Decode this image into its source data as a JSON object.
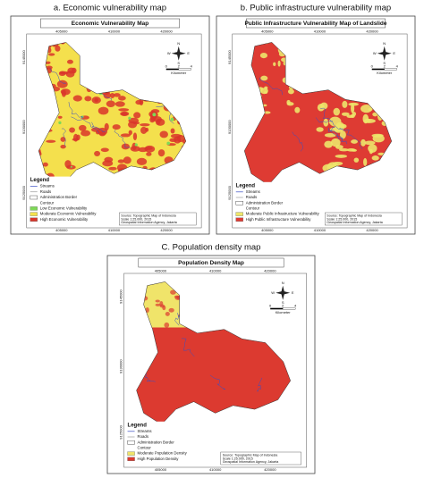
{
  "panels": [
    {
      "caption": "a. Economic vulnerability map",
      "title": "Economic Vulnerability Map",
      "x_ticks": [
        "405000",
        "410000",
        "420000"
      ],
      "y_ticks": [
        "9145000",
        "9130000",
        "9125000"
      ],
      "compass": [
        "N",
        "E",
        "S",
        "W"
      ],
      "scale": [
        "0",
        "2",
        "4"
      ],
      "scale_unit": "Kilometer",
      "legend": {
        "heading": "Legend",
        "items": [
          {
            "label": "Streams"
          },
          {
            "label": "Roads"
          },
          {
            "label": "Administration Border"
          },
          {
            "label": "Contour"
          },
          {
            "label": "Low Economic Vulnerability",
            "color": "#7ed957"
          },
          {
            "label": "Moderate Economic Vulnerability",
            "color": "#f4e04d"
          },
          {
            "label": "High Economic Vulnerability",
            "color": "#d9352a"
          }
        ]
      },
      "source": [
        "Source: Topographic Map of Indonesia",
        "Scale 1:25.000, 2015",
        "Geospatial Information Agency, Jakarta"
      ]
    },
    {
      "caption": "b. Public infrastructure vulnerability map",
      "title": "Public Infrastructure Vulnerability Map of Landslide",
      "x_ticks": [
        "405000",
        "410000",
        "420000"
      ],
      "y_ticks": [
        "9145000",
        "9130000",
        "9125000"
      ],
      "compass": [
        "N",
        "E",
        "S",
        "W"
      ],
      "scale": [
        "0",
        "2",
        "4"
      ],
      "scale_unit": "Kilometer",
      "legend": {
        "heading": "Legend",
        "items": [
          {
            "label": "Streams"
          },
          {
            "label": "Roads"
          },
          {
            "label": "Administration Border"
          },
          {
            "label": "Contour"
          },
          {
            "label": "Moderate Public Infrastructure Vulnerability",
            "color": "#ede66a"
          },
          {
            "label": "High Public Infrastructure Vulnerability",
            "color": "#de3b33"
          }
        ]
      },
      "source": [
        "Source: Topographic Map of Indonesia",
        "Scale 1:25.000, 2015",
        "Geospatial Information Agency, Jakarta"
      ]
    },
    {
      "caption": "C. Population density map",
      "title": "Population Density Map",
      "x_ticks": [
        "405000",
        "410000",
        "420000"
      ],
      "y_ticks": [
        "9145000",
        "9130000",
        "9125000"
      ],
      "compass": [
        "N",
        "E",
        "S",
        "W"
      ],
      "scale": [
        "0",
        "2",
        "4"
      ],
      "scale_unit": "Kilometer",
      "legend": {
        "heading": "Legend",
        "items": [
          {
            "label": "Streams"
          },
          {
            "label": "Roads"
          },
          {
            "label": "Administration Border"
          },
          {
            "label": "Contour"
          },
          {
            "label": "Moderate Population Density",
            "color": "#f0e46a"
          },
          {
            "label": "High Population Density",
            "color": "#dc3a30"
          }
        ]
      },
      "source": [
        "Source: Topographic Map of Indonesia",
        "Scale 1:25.000, 2015",
        "Geospatial Information Agency, Jakarta"
      ]
    }
  ]
}
